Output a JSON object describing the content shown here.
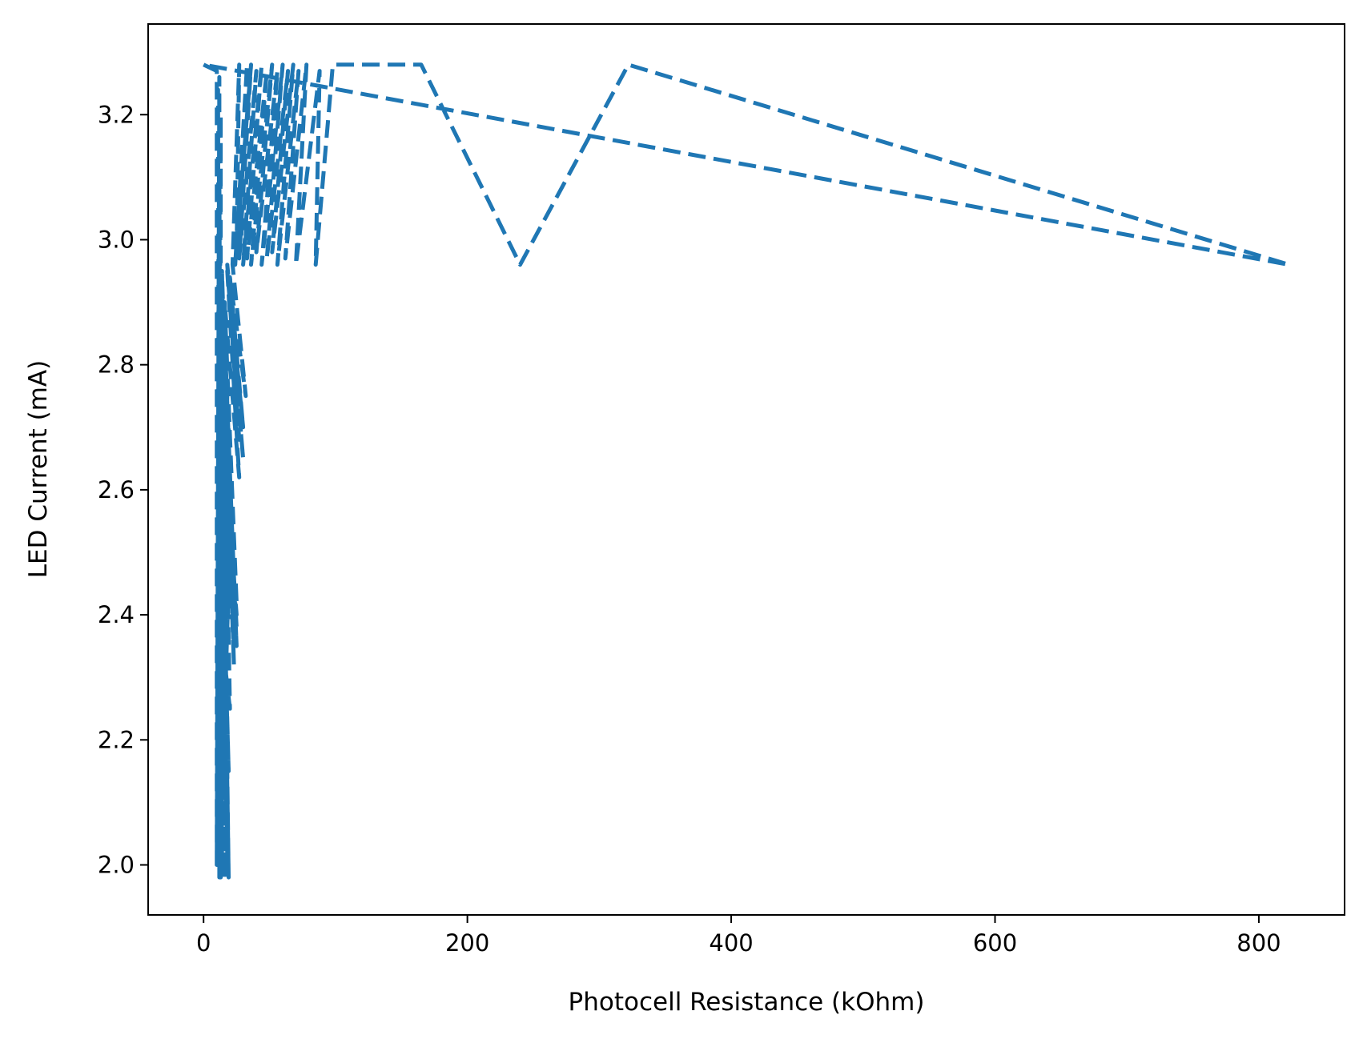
{
  "chart_data": {
    "type": "line",
    "title": "",
    "xlabel": "Photocell Resistance (kOhm)",
    "ylabel": "LED Current (mA)",
    "xlim": [
      -42,
      865
    ],
    "ylim": [
      1.92,
      3.345
    ],
    "xticks": [
      0,
      200,
      400,
      600,
      800
    ],
    "yticks": [
      2.0,
      2.2,
      2.4,
      2.6,
      2.8,
      3.0,
      3.2
    ],
    "ytick_labels": [
      "2.0",
      "2.2",
      "2.4",
      "2.6",
      "2.8",
      "3.0",
      "3.2"
    ],
    "grid": false,
    "legend": "none",
    "line_style": "dashed",
    "color": "#1f77b4",
    "series": [
      {
        "x": [
          0,
          10,
          10,
          12,
          12,
          11,
          11,
          13,
          13,
          12,
          14,
          12,
          16,
          12,
          18,
          13,
          19,
          14,
          12,
          18,
          13,
          19,
          14,
          12,
          18,
          13,
          19,
          14,
          12,
          18,
          13,
          19,
          14,
          12,
          20,
          14,
          23,
          15,
          25,
          16,
          23,
          15,
          25,
          16,
          23,
          15,
          25,
          16,
          23,
          15,
          25,
          16,
          27,
          18,
          30,
          20,
          27,
          18,
          30,
          20,
          32,
          22,
          27,
          25,
          33,
          24,
          36,
          27,
          40,
          30,
          44,
          33,
          48,
          36,
          52,
          40,
          56,
          44,
          60,
          48,
          64,
          52,
          68,
          56,
          72,
          62,
          78,
          70,
          88,
          85,
          98,
          102,
          165,
          240,
          322,
          823,
          0
        ],
        "y": [
          3.28,
          3.27,
          2.0,
          3.26,
          1.98,
          3.24,
          2.02,
          3.2,
          1.98,
          3.1,
          2.0,
          2.95,
          1.98,
          2.9,
          2.02,
          2.85,
          1.98,
          2.8,
          2.05,
          2.75,
          2.0,
          2.7,
          2.1,
          2.65,
          2.02,
          2.6,
          2.15,
          2.55,
          2.05,
          2.5,
          2.2,
          2.45,
          2.1,
          2.4,
          2.25,
          2.95,
          2.32,
          2.9,
          2.35,
          2.85,
          2.32,
          2.8,
          2.38,
          2.75,
          2.35,
          2.7,
          2.4,
          2.65,
          2.38,
          2.6,
          2.42,
          2.9,
          2.62,
          2.95,
          2.65,
          2.9,
          2.68,
          2.96,
          2.7,
          2.94,
          2.75,
          2.96,
          3.28,
          2.98,
          3.28,
          2.96,
          3.28,
          2.97,
          3.27,
          2.96,
          3.28,
          2.97,
          3.27,
          2.96,
          3.28,
          2.98,
          3.27,
          2.96,
          3.28,
          2.97,
          3.27,
          2.98,
          3.28,
          2.96,
          3.27,
          2.97,
          3.28,
          2.96,
          3.27,
          2.96,
          3.28,
          3.28,
          3.28,
          2.96,
          3.28,
          2.96,
          3.28
        ]
      }
    ]
  }
}
